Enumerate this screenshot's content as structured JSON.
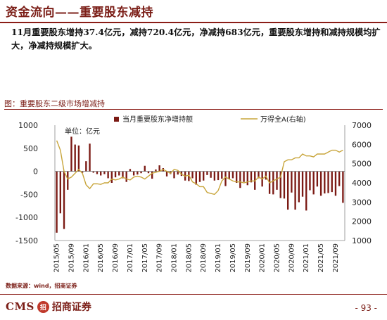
{
  "header": {
    "title": "资金流向——重要股东减持"
  },
  "summary": {
    "text": "11月重要股东增持37.4亿元，减持720.4亿元，净减持683亿元，重要股东增持和减持规模均扩大，净减持规模扩大。"
  },
  "chart_title": "图：重要股东二级市场增减持",
  "unit_label": "单位：亿元",
  "source": "数据来源：wind，招商证券",
  "footer": {
    "logo_en": "CMS",
    "logo_badge": "招",
    "logo_cn": "招商证券",
    "page": "- 93 -"
  },
  "colors": {
    "bar": "#7b1a14",
    "line": "#c8a53b",
    "accent": "#7b1e17"
  },
  "chart_data": {
    "type": "bar+line",
    "series": [
      {
        "name": "当月重要股东净增持额",
        "kind": "bar",
        "axis": "left"
      },
      {
        "name": "万得全A(右轴)",
        "kind": "line",
        "axis": "right"
      }
    ],
    "x_tick_labels": [
      "2015/05",
      "2015/09",
      "2016/01",
      "2016/05",
      "2016/09",
      "2017/01",
      "2017/05",
      "2017/09",
      "2018/01",
      "2018/05",
      "2018/09",
      "2019/01",
      "2019/05",
      "2019/09",
      "2020/01",
      "2020/05",
      "2020/09",
      "2021/01",
      "2021/05",
      "2021/09"
    ],
    "months": [
      "2015/05",
      "2015/06",
      "2015/07",
      "2015/08",
      "2015/09",
      "2015/10",
      "2015/11",
      "2015/12",
      "2016/01",
      "2016/02",
      "2016/03",
      "2016/04",
      "2016/05",
      "2016/06",
      "2016/07",
      "2016/08",
      "2016/09",
      "2016/10",
      "2016/11",
      "2016/12",
      "2017/01",
      "2017/02",
      "2017/03",
      "2017/04",
      "2017/05",
      "2017/06",
      "2017/07",
      "2017/08",
      "2017/09",
      "2017/10",
      "2017/11",
      "2017/12",
      "2018/01",
      "2018/02",
      "2018/03",
      "2018/04",
      "2018/05",
      "2018/06",
      "2018/07",
      "2018/08",
      "2018/09",
      "2018/10",
      "2018/11",
      "2018/12",
      "2019/01",
      "2019/02",
      "2019/03",
      "2019/04",
      "2019/05",
      "2019/06",
      "2019/07",
      "2019/08",
      "2019/09",
      "2019/10",
      "2019/11",
      "2019/12",
      "2020/01",
      "2020/02",
      "2020/03",
      "2020/04",
      "2020/05",
      "2020/06",
      "2020/07",
      "2020/08",
      "2020/09",
      "2020/10",
      "2020/11",
      "2020/12",
      "2021/01",
      "2021/02",
      "2021/03",
      "2021/04",
      "2021/05",
      "2021/06",
      "2021/07",
      "2021/08",
      "2021/09",
      "2021/10",
      "2021/11"
    ],
    "bar_values": [
      -1330,
      -910,
      -1250,
      -400,
      750,
      580,
      560,
      -30,
      220,
      600,
      -30,
      -60,
      -90,
      -60,
      -150,
      -250,
      -130,
      -90,
      -150,
      -230,
      50,
      -90,
      -70,
      -40,
      120,
      -40,
      -160,
      40,
      130,
      70,
      -110,
      -60,
      -150,
      -70,
      -100,
      -200,
      -210,
      -150,
      -290,
      -230,
      -200,
      -80,
      -140,
      -200,
      -190,
      -160,
      -320,
      -170,
      -150,
      -250,
      -360,
      -230,
      -300,
      -240,
      -400,
      -150,
      -330,
      -180,
      -490,
      -500,
      -400,
      -580,
      -590,
      -830,
      -460,
      -830,
      -670,
      -550,
      -850,
      -410,
      -500,
      -330,
      -530,
      -480,
      -470,
      -450,
      -530,
      -320,
      -683
    ],
    "line_values": [
      6200,
      5700,
      4600,
      4200,
      4300,
      4500,
      4700,
      4500,
      3900,
      3700,
      3950,
      3950,
      3920,
      4000,
      4000,
      4200,
      4150,
      4200,
      4300,
      4200,
      4150,
      4300,
      4350,
      4300,
      4200,
      4350,
      4500,
      4550,
      4600,
      4700,
      4600,
      4500,
      4700,
      4650,
      4450,
      4350,
      4400,
      4050,
      3950,
      3800,
      3800,
      3500,
      3450,
      3400,
      3600,
      4100,
      4300,
      4200,
      4100,
      4050,
      4050,
      4000,
      4050,
      4100,
      4100,
      4300,
      4200,
      4350,
      4000,
      4100,
      4200,
      4300,
      5100,
      5200,
      5200,
      5300,
      5300,
      5500,
      5400,
      5400,
      5350,
      5500,
      5500,
      5500,
      5600,
      5700,
      5700,
      5600,
      5700
    ],
    "y_left": {
      "min": -1500,
      "max": 1000,
      "ticks": [
        -1500,
        -1000,
        -500,
        0,
        500,
        1000
      ]
    },
    "y_right": {
      "min": 1000,
      "max": 7000,
      "ticks": [
        1000,
        2000,
        3000,
        4000,
        5000,
        6000,
        7000
      ]
    },
    "legend_placement": "top",
    "grid": false
  }
}
